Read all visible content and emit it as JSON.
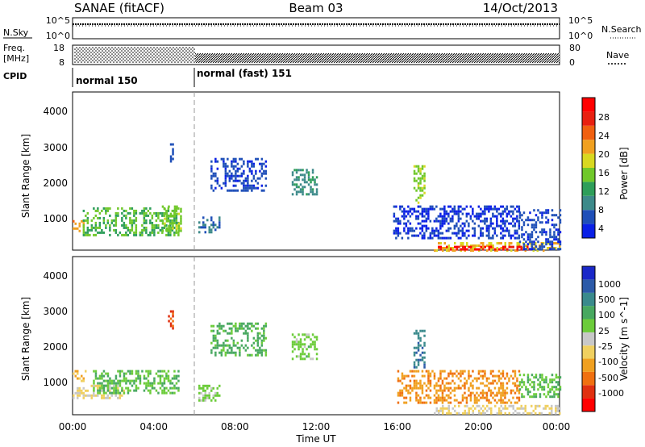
{
  "header": {
    "station": "SANAE (fitACF)",
    "beam": "Beam 03",
    "date": "14/Oct/2013"
  },
  "noise_panel": {
    "left_label": "N.Sky",
    "right_label": "N.Search",
    "left_ticks": [
      "10^5",
      "10^0"
    ],
    "right_ticks": [
      "10^5",
      "10^0"
    ]
  },
  "freq_panel": {
    "label_line1": "Freq.",
    "label_line2": "[MHz]",
    "right_label": "Nave",
    "left_ticks": [
      "18",
      "8"
    ],
    "right_ticks": [
      "80",
      "0"
    ]
  },
  "cpid_panel": {
    "label": "CPID",
    "modes": [
      {
        "name": "normal 150",
        "start_hour": 0
      },
      {
        "name": "normal (fast) 151",
        "start_hour": 6
      }
    ]
  },
  "colors": {
    "power_scale": [
      "#0a20e6",
      "#1f4fb8",
      "#3d8a8a",
      "#2e9e5a",
      "#70c82a",
      "#d8d820",
      "#f0a020",
      "#f06010",
      "#e82010",
      "#ff0000"
    ],
    "velocity_scale": [
      "#1a28c8",
      "#2c5aa8",
      "#3a8a8c",
      "#48a860",
      "#6ccc3a",
      "#c8c8c8",
      "#f0d060",
      "#f0a020",
      "#f07010",
      "#e03010",
      "#ff0000"
    ]
  },
  "chart_data": [
    {
      "type": "heatmap",
      "name": "power",
      "xlabel": "Time UT",
      "ylabel": "Slant Range [km]",
      "x_ticks": [
        "00:00",
        "04:00",
        "08:00",
        "12:00",
        "16:00",
        "20:00",
        "00:00"
      ],
      "x_range_hours": [
        0,
        24
      ],
      "y_ticks": [
        "1000",
        "2000",
        "3000",
        "4000"
      ],
      "ylim": [
        180,
        4500
      ],
      "colorbar_label": "Power [dB]",
      "colorbar_ticks": [
        "4",
        "8",
        "12",
        "16",
        "20",
        "24",
        "28"
      ],
      "colorbar_range": [
        0,
        30
      ],
      "cpid_change_hour": 6,
      "patches": [
        {
          "t": [
            0.0,
            0.5
          ],
          "r": [
            700,
            1000
          ],
          "val": 20
        },
        {
          "t": [
            0.5,
            5.2
          ],
          "r": [
            600,
            1350
          ],
          "val": 12
        },
        {
          "t": [
            4.4,
            5.3
          ],
          "r": [
            700,
            1400
          ],
          "val": 14
        },
        {
          "t": [
            4.8,
            4.9
          ],
          "r": [
            2600,
            3100
          ],
          "val": 5
        },
        {
          "t": [
            6.2,
            7.2
          ],
          "r": [
            700,
            1100
          ],
          "val": 6
        },
        {
          "t": [
            6.8,
            9.5
          ],
          "r": [
            1800,
            2700
          ],
          "val": 4
        },
        {
          "t": [
            10.8,
            12.0
          ],
          "r": [
            1700,
            2400
          ],
          "val": 8
        },
        {
          "t": [
            15.8,
            22.0
          ],
          "r": [
            500,
            1400
          ],
          "val": 3
        },
        {
          "t": [
            16.8,
            17.3
          ],
          "r": [
            1500,
            2500
          ],
          "val": 14
        },
        {
          "t": [
            17.8,
            24.0
          ],
          "r": [
            200,
            400
          ],
          "val": 18
        },
        {
          "t": [
            18.0,
            22.5
          ],
          "r": [
            180,
            300
          ],
          "val": 28
        },
        {
          "t": [
            22.0,
            24.0
          ],
          "r": [
            200,
            1300
          ],
          "val": 4
        }
      ]
    },
    {
      "type": "heatmap",
      "name": "velocity",
      "xlabel": "Time UT",
      "ylabel": "Slant Range [km]",
      "x_ticks": [
        "00:00",
        "04:00",
        "08:00",
        "12:00",
        "16:00",
        "20:00",
        "00:00"
      ],
      "x_range_hours": [
        0,
        24
      ],
      "y_ticks": [
        "1000",
        "2000",
        "3000",
        "4000"
      ],
      "ylim": [
        180,
        4500
      ],
      "colorbar_label": "Velocity [m s^-1]",
      "colorbar_ticks": [
        "1000",
        "500",
        "100",
        "25",
        "-25",
        "-100",
        "-500",
        "-1000"
      ],
      "colorbar_range": [
        -1200,
        1200
      ],
      "cpid_change_hour": 6,
      "patches": [
        {
          "t": [
            0.0,
            0.6
          ],
          "r": [
            1100,
            1400
          ],
          "val": -300
        },
        {
          "t": [
            0.0,
            2.5
          ],
          "r": [
            650,
            1000
          ],
          "val": -120
        },
        {
          "t": [
            1.0,
            5.2
          ],
          "r": [
            800,
            1400
          ],
          "val": 300
        },
        {
          "t": [
            4.7,
            4.9
          ],
          "r": [
            2400,
            3100
          ],
          "val": -800
        },
        {
          "t": [
            6.2,
            7.2
          ],
          "r": [
            600,
            1000
          ],
          "val": 150
        },
        {
          "t": [
            6.8,
            9.5
          ],
          "r": [
            1800,
            2700
          ],
          "val": 400
        },
        {
          "t": [
            10.8,
            12.0
          ],
          "r": [
            1700,
            2400
          ],
          "val": 200
        },
        {
          "t": [
            16.0,
            22.0
          ],
          "r": [
            500,
            1400
          ],
          "val": -500
        },
        {
          "t": [
            16.8,
            17.3
          ],
          "r": [
            1500,
            2500
          ],
          "val": 700
        },
        {
          "t": [
            17.8,
            24.0
          ],
          "r": [
            200,
            450
          ],
          "val": -110
        },
        {
          "t": [
            22.0,
            24.0
          ],
          "r": [
            700,
            1300
          ],
          "val": 300
        }
      ]
    }
  ],
  "x_axis": {
    "label": "Time UT",
    "ticks": [
      "00:00",
      "04:00",
      "08:00",
      "12:00",
      "16:00",
      "20:00",
      "00:00"
    ]
  }
}
